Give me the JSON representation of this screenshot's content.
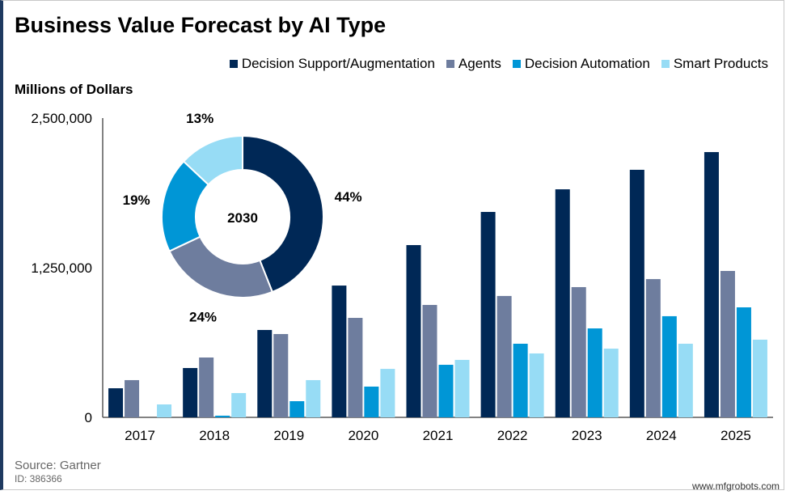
{
  "chart_data": {
    "type": "bar",
    "title": "Business Value Forecast by AI Type",
    "ylabel": "Millions of Dollars",
    "ylim": [
      0,
      2500000
    ],
    "yticks": [
      "0",
      "1,250,000",
      "2,500,000"
    ],
    "grid": false,
    "legend_position": "top-right",
    "categories": [
      "2017",
      "2018",
      "2019",
      "2020",
      "2021",
      "2022",
      "2023",
      "2024",
      "2025"
    ],
    "series": [
      {
        "name": "Decision Support/Augmentation",
        "color": "#002856",
        "values": [
          243000,
          412000,
          730000,
          1101000,
          1439000,
          1716000,
          1905000,
          2068000,
          2216000
        ]
      },
      {
        "name": "Agents",
        "color": "#6E7D9E",
        "values": [
          311000,
          500000,
          696000,
          831000,
          939000,
          1014000,
          1088000,
          1155000,
          1223000
        ]
      },
      {
        "name": "Decision Automation",
        "color": "#0096D6",
        "values": [
          0,
          14000,
          135000,
          257000,
          439000,
          615000,
          743000,
          845000,
          919000
        ]
      },
      {
        "name": "Smart Products",
        "color": "#97DCF5",
        "values": [
          108000,
          203000,
          311000,
          405000,
          480000,
          534000,
          574000,
          615000,
          649000
        ]
      }
    ],
    "inset": {
      "type": "pie",
      "center_label": "2030",
      "slices": [
        {
          "series": "Decision Support/Augmentation",
          "value": 44,
          "label": "44%"
        },
        {
          "series": "Agents",
          "value": 24,
          "label": "24%"
        },
        {
          "series": "Decision Automation",
          "value": 19,
          "label": "19%"
        },
        {
          "series": "Smart Products",
          "value": 13,
          "label": "13%"
        }
      ]
    }
  },
  "source": "Source: Gartner",
  "id": "ID: 386366",
  "watermark": "www.mfgrobots.com"
}
